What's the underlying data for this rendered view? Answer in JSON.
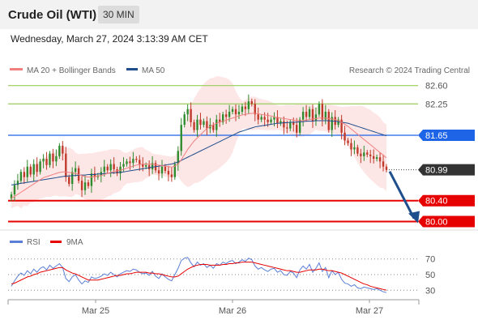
{
  "header": {
    "title": "Crude Oil (WTI)",
    "timeframe": "30 MIN"
  },
  "timestamp": "Wednesday, March 27, 2024 3:13:39 AM CET",
  "legend": {
    "ma20": "MA 20 + Bollinger Bands",
    "ma50": "MA 50",
    "credit": "Research © 2024 Trading Central"
  },
  "rsi_legend": {
    "rsi": "RSI",
    "ma9": "9MA"
  },
  "colors": {
    "ma20": "#f08080",
    "ma50": "#1f4e8c",
    "bull": "#2e8b2e",
    "bear": "#c0392b",
    "pivot": "#1e64e6",
    "support": "#e60000",
    "resistance": "#9acd5a",
    "current": "#333333",
    "band": "#fde2e2"
  },
  "chart_data": [
    {
      "type": "candlestick",
      "title": "Crude Oil (WTI) 30 MIN",
      "ylim": [
        79.9,
        82.75
      ],
      "x_ticks": [
        "Mar 25",
        "Mar 26",
        "Mar 27"
      ],
      "levels": [
        {
          "label": "82.60",
          "value": 82.6,
          "kind": "resistance"
        },
        {
          "label": "82.25",
          "value": 82.25,
          "kind": "resistance"
        },
        {
          "label": "81.65",
          "value": 81.65,
          "kind": "pivot"
        },
        {
          "label": "80.99",
          "value": 80.99,
          "kind": "current"
        },
        {
          "label": "80.40",
          "value": 80.4,
          "kind": "support"
        },
        {
          "label": "80.00",
          "value": 80.0,
          "kind": "support"
        }
      ],
      "closes": [
        80.52,
        80.7,
        80.78,
        80.95,
        80.85,
        81.05,
        80.9,
        81.1,
        80.95,
        81.15,
        81.2,
        81.08,
        81.3,
        81.15,
        81.25,
        81.45,
        81.3,
        80.85,
        80.72,
        80.95,
        81.02,
        80.78,
        80.6,
        80.75,
        80.68,
        80.92,
        80.85,
        80.88,
        80.95,
        81.05,
        80.98,
        81.1,
        81.0,
        80.92,
        81.05,
        81.1,
        81.15,
        81.12,
        81.2,
        81.18,
        81.1,
        81.05,
        81.08,
        81.0,
        81.12,
        80.98,
        80.92,
        81.05,
        80.97,
        80.9,
        80.85,
        81.1,
        81.35,
        81.85,
        82.05,
        82.15,
        81.9,
        81.75,
        81.95,
        81.85,
        81.92,
        81.78,
        81.85,
        81.75,
        81.95,
        81.9,
        82.05,
        82.0,
        82.1,
        82.15,
        82.05,
        82.1,
        82.2,
        82.15,
        82.3,
        82.25,
        82.05,
        81.95,
        82.0,
        81.95,
        81.9,
        81.95,
        82.0,
        81.88,
        81.92,
        81.8,
        81.78,
        81.9,
        81.85,
        81.7,
        81.95,
        82.1,
        82.0,
        82.15,
        81.92,
        82.05,
        82.25,
        81.95,
        82.1,
        81.75,
        82.0,
        81.85,
        81.95,
        81.7,
        81.55,
        81.5,
        81.38,
        81.42,
        81.3,
        81.25,
        81.32,
        81.28,
        81.25,
        81.2,
        81.23,
        81.15,
        81.05,
        80.99
      ],
      "series": [
        {
          "name": "MA 20",
          "values": [
            80.45,
            80.48,
            80.52,
            80.56,
            80.6,
            80.64,
            80.68,
            80.72,
            80.76,
            80.8,
            80.84,
            80.86,
            80.88,
            80.9,
            80.92,
            80.94,
            80.95,
            80.95,
            80.94,
            80.93,
            80.92,
            80.9,
            80.88,
            80.86,
            80.85,
            80.85,
            80.86,
            80.87,
            80.88,
            80.9,
            80.92,
            80.94,
            80.96,
            80.97,
            80.98,
            81.0,
            81.02,
            81.04,
            81.06,
            81.08,
            81.09,
            81.1,
            81.1,
            81.1,
            81.1,
            81.09,
            81.08,
            81.07,
            81.06,
            81.05,
            81.04,
            81.06,
            81.1,
            81.18,
            81.28,
            81.38,
            81.46,
            81.54,
            81.6,
            81.66,
            81.72,
            81.78,
            81.82,
            81.85,
            81.88,
            81.9,
            81.92,
            81.94,
            81.96,
            81.98,
            82.0,
            82.02,
            82.04,
            82.05,
            82.06,
            82.07,
            82.07,
            82.06,
            82.05,
            82.04,
            82.03,
            82.02,
            82.0,
            81.99,
            81.98,
            81.97,
            81.96,
            81.95,
            81.94,
            81.93,
            81.93,
            81.93,
            81.94,
            81.95,
            81.96,
            81.97,
            81.98,
            81.98,
            81.98,
            81.97,
            81.96,
            81.95,
            81.93,
            81.9,
            81.86,
            81.82,
            81.77,
            81.72,
            81.67,
            81.62,
            81.57,
            81.52,
            81.47,
            81.42,
            81.37,
            81.32,
            81.27,
            81.22
          ]
        },
        {
          "name": "MA 50",
          "values": [
            80.7,
            80.71,
            80.72,
            80.73,
            80.74,
            80.75,
            80.76,
            80.77,
            80.78,
            80.79,
            80.8,
            80.81,
            80.82,
            80.83,
            80.84,
            80.85,
            80.86,
            80.87,
            80.87,
            80.88,
            80.88,
            80.89,
            80.89,
            80.89,
            80.9,
            80.9,
            80.9,
            80.91,
            80.91,
            80.92,
            80.92,
            80.93,
            80.93,
            80.94,
            80.94,
            80.95,
            80.96,
            80.97,
            80.98,
            80.99,
            81.0,
            81.01,
            81.02,
            81.03,
            81.04,
            81.05,
            81.06,
            81.07,
            81.08,
            81.09,
            81.1,
            81.12,
            81.14,
            81.17,
            81.2,
            81.23,
            81.26,
            81.29,
            81.32,
            81.35,
            81.38,
            81.41,
            81.44,
            81.47,
            81.5,
            81.53,
            81.56,
            81.59,
            81.62,
            81.65,
            81.68,
            81.71,
            81.73,
            81.75,
            81.77,
            81.79,
            81.81,
            81.82,
            81.83,
            81.84,
            81.85,
            81.86,
            81.87,
            81.88,
            81.88,
            81.89,
            81.89,
            81.9,
            81.9,
            81.9,
            81.91,
            81.91,
            81.92,
            81.92,
            81.92,
            81.93,
            81.93,
            81.93,
            81.93,
            81.93,
            81.92,
            81.92,
            81.91,
            81.9,
            81.89,
            81.88,
            81.86,
            81.84,
            81.82,
            81.8,
            81.78,
            81.76,
            81.74,
            81.72,
            81.7,
            81.68,
            81.66,
            81.64
          ]
        }
      ],
      "projection": {
        "from": 80.99,
        "to": 80.0
      }
    },
    {
      "type": "line",
      "title": "RSI",
      "ylim": [
        22,
        78
      ],
      "y_ticks": [
        70,
        50,
        30
      ],
      "series": [
        {
          "name": "RSI",
          "values": [
            35,
            42,
            48,
            52,
            49,
            55,
            51,
            57,
            53,
            58,
            60,
            56,
            62,
            58,
            61,
            64,
            59,
            45,
            41,
            47,
            50,
            43,
            38,
            42,
            40,
            47,
            45,
            46,
            48,
            51,
            49,
            53,
            50,
            47,
            51,
            53,
            55,
            54,
            57,
            56,
            53,
            51,
            52,
            49,
            54,
            48,
            45,
            51,
            47,
            44,
            42,
            50,
            58,
            68,
            71,
            72,
            65,
            60,
            66,
            62,
            64,
            59,
            62,
            58,
            64,
            62,
            66,
            64,
            67,
            68,
            64,
            66,
            69,
            67,
            71,
            69,
            61,
            57,
            59,
            56,
            54,
            57,
            58,
            53,
            55,
            50,
            49,
            54,
            52,
            46,
            56,
            61,
            57,
            63,
            53,
            58,
            65,
            54,
            59,
            46,
            55,
            50,
            53,
            44,
            39,
            38,
            35,
            37,
            33,
            32,
            34,
            33,
            32,
            31,
            32,
            30,
            28,
            27
          ]
        },
        {
          "name": "9MA",
          "values": [
            38,
            39,
            41,
            43,
            45,
            47,
            48,
            50,
            51,
            53,
            54,
            55,
            56,
            57,
            58,
            59,
            59,
            56,
            54,
            52,
            51,
            49,
            47,
            45,
            43,
            43,
            43,
            43,
            44,
            45,
            46,
            47,
            48,
            49,
            49,
            50,
            51,
            51,
            52,
            53,
            53,
            53,
            53,
            52,
            52,
            51,
            51,
            50,
            49,
            48,
            47,
            47,
            48,
            51,
            54,
            57,
            59,
            61,
            62,
            63,
            63,
            63,
            62,
            62,
            62,
            62,
            63,
            63,
            64,
            64,
            65,
            65,
            66,
            66,
            66,
            66,
            65,
            64,
            63,
            62,
            61,
            60,
            59,
            58,
            57,
            56,
            55,
            55,
            54,
            53,
            53,
            54,
            55,
            56,
            56,
            56,
            57,
            57,
            56,
            55,
            55,
            54,
            53,
            52,
            50,
            48,
            46,
            44,
            42,
            40,
            38,
            37,
            35,
            34,
            33,
            32,
            31,
            30
          ]
        }
      ]
    }
  ]
}
